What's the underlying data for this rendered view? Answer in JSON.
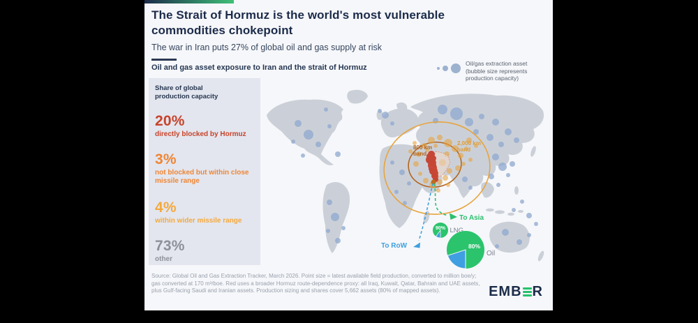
{
  "header": {
    "title": "The Strait of Hormuz is the world's most vulnerable commodities chokepoint",
    "subtitle": "The war in Iran puts 27% of global oil and gas supply at risk",
    "chart_title": "Oil and gas asset exposure to Iran and the strait of Hormuz"
  },
  "legend": {
    "label": "Oil/gas extraction asset (bubble size represents production capacity)"
  },
  "panel": {
    "header": "Share of global production capacity",
    "items": [
      {
        "value": "20%",
        "label": "directly blocked by Hormuz",
        "color": "#c8432a"
      },
      {
        "value": "3%",
        "label": "not blocked but within close missile range",
        "color": "#ef8634"
      },
      {
        "value": "4%",
        "label": "within wider missile range",
        "color": "#f4a93e"
      },
      {
        "value": "73%",
        "label": "other",
        "color": "#8d9097"
      }
    ]
  },
  "map": {
    "bands": [
      {
        "line1": "800 km",
        "line2": "band"
      },
      {
        "line1": "2,000 km",
        "line2": "band"
      }
    ],
    "routes": [
      {
        "label": "To Asia",
        "color": "#2bbf6e"
      },
      {
        "label": "To RoW",
        "color": "#3f9fe0"
      }
    ],
    "pies": [
      {
        "name": "LNG",
        "pct_label": "90%"
      },
      {
        "name": "Oil",
        "pct_label": "80%"
      }
    ]
  },
  "source": "Source: Global Oil and Gas Extraction Tracker, March 2026. Point size = latest available field production, converted to million boe/y; gas converted at 170 m³/boe. Red uses a broader Hormuz route-dependence proxy: all Iraq, Kuwait, Qatar, Bahrain and UAE assets, plus Gulf-facing Saudi and Iranian assets. Production sizing and shares cover 5,662 assets (80% of mapped assets).",
  "logo": {
    "left": "EMB",
    "right": "R"
  },
  "colors": {
    "background": "#000000",
    "card": "#f6f7fa",
    "title_navy": "#1c2b4a",
    "land": "#cbd0d8",
    "asset_blue": "#8fa9cf",
    "asset_orange": "#e9a33c",
    "asset_red": "#c63b28",
    "band_inner": "#b2651e",
    "band_outer": "#e7a43e",
    "pie_green": "#2bc46d",
    "pie_blue": "#3f9fe0",
    "logo_green": "#25c16d"
  },
  "chart_data": [
    {
      "type": "pie",
      "title": "Share of global production capacity",
      "labels": [
        "directly blocked by Hormuz",
        "not blocked but within close missile range",
        "within wider missile range",
        "other"
      ],
      "values": [
        20,
        3,
        4,
        73
      ],
      "unit": "%"
    },
    {
      "type": "pie",
      "title": "LNG through Hormuz",
      "labels": [
        "To Asia",
        "To RoW"
      ],
      "values": [
        90,
        10
      ],
      "unit": "%"
    },
    {
      "type": "pie",
      "title": "Oil through Hormuz",
      "labels": [
        "To Asia",
        "To RoW"
      ],
      "values": [
        80,
        20
      ],
      "unit": "%"
    }
  ]
}
